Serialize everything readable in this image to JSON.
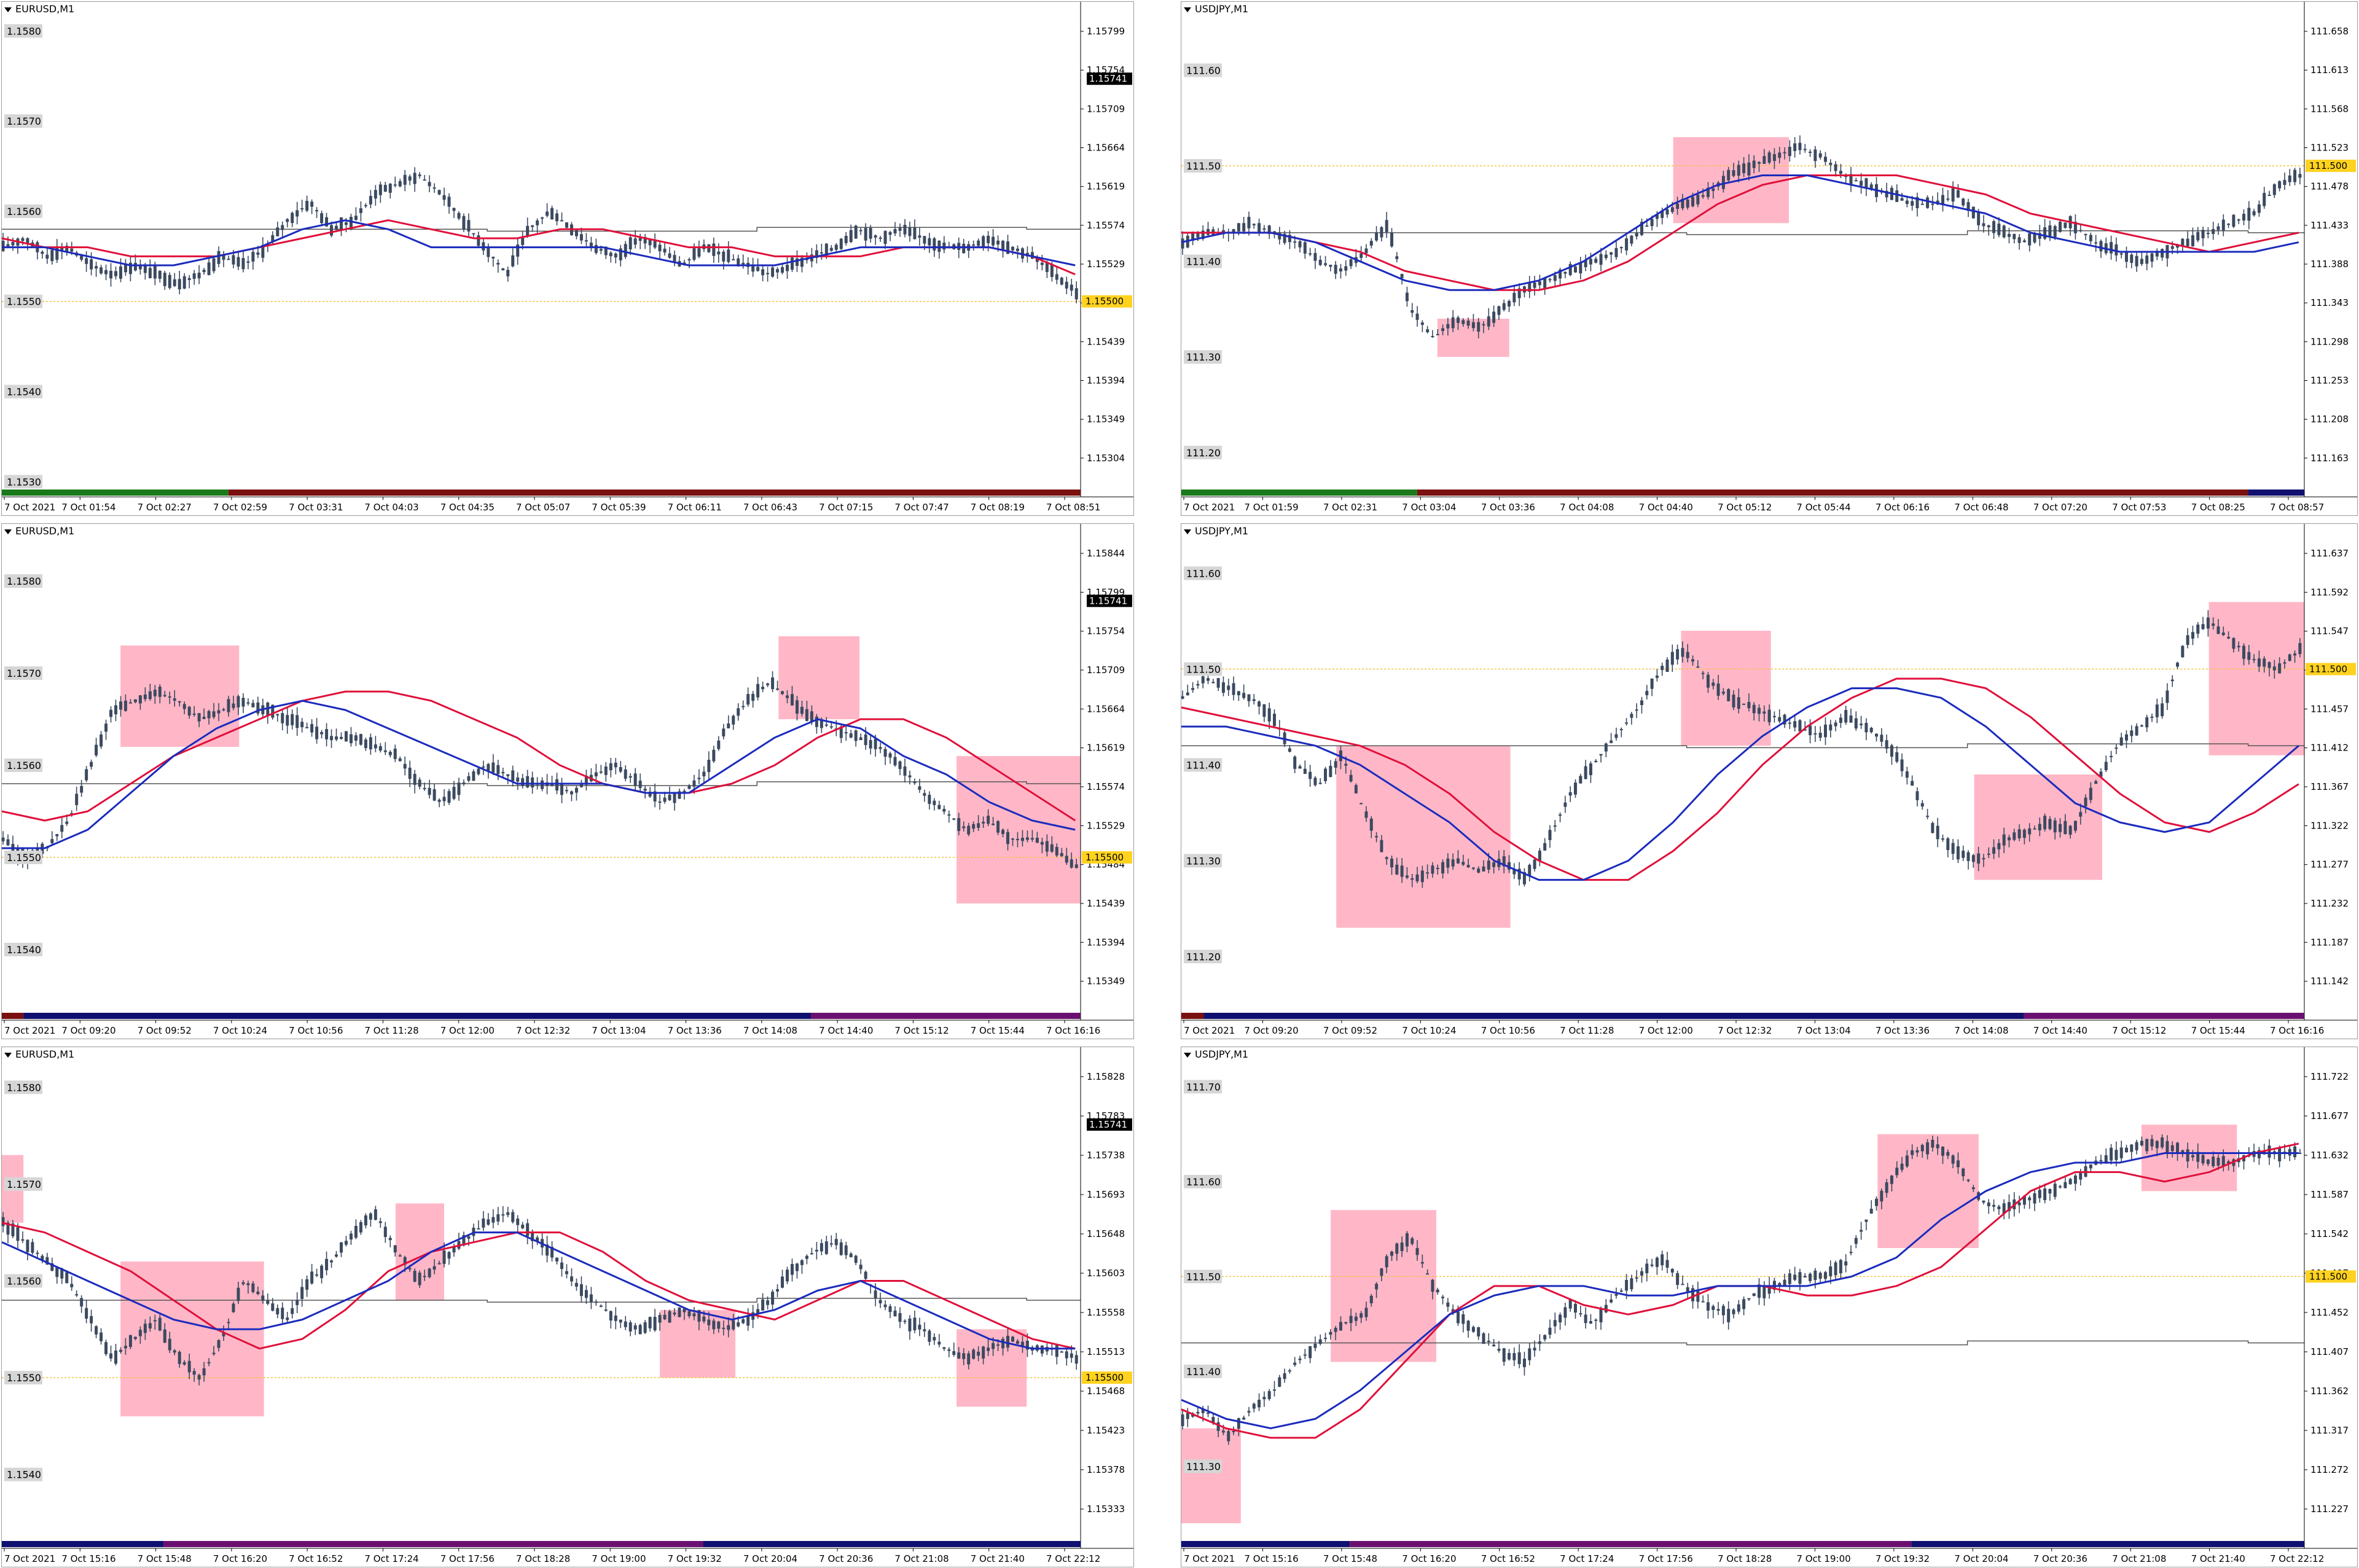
{
  "colors": {
    "candle": "#3c4a60",
    "ma_red": "#e0103a",
    "ma_blue": "#1b2bbd",
    "line_gray": "#555555",
    "dotted": "#f3c23c",
    "highlight": "#ff9fb4",
    "badge": "#ffd21f",
    "grid_label_bg": "#d6d6d6"
  },
  "charts": [
    {
      "id": "c1",
      "title": "EURUSD,M1",
      "left_labels": [
        "1.1580",
        "1.1570",
        "1.1560",
        "1.1550",
        "1.1540",
        "1.1530"
      ],
      "right_labels": [
        "1.15799",
        "1.15754",
        "1.15709",
        "1.15664",
        "1.15619",
        "1.15574",
        "1.15529",
        "1.15484",
        "1.15439",
        "1.15394",
        "1.15349",
        "1.15304"
      ],
      "price_badge": "1.15500",
      "black_badge": "1.15741",
      "x_labels": [
        "7 Oct 2021",
        "7 Oct 01:54",
        "7 Oct 02:27",
        "7 Oct 02:59",
        "7 Oct 03:31",
        "7 Oct 04:03",
        "7 Oct 04:35",
        "7 Oct 05:07",
        "7 Oct 05:39",
        "7 Oct 06:11",
        "7 Oct 06:43",
        "7 Oct 07:15",
        "7 Oct 07:47",
        "7 Oct 08:19",
        "7 Oct 08:51"
      ],
      "session_bar": [
        [
          "#1a7a1a",
          0.21
        ],
        [
          "#7a1010",
          0.79
        ]
      ],
      "price_path": [
        1.1556,
        1.1557,
        1.1555,
        1.1556,
        1.1554,
        1.1553,
        1.1554,
        1.1553,
        1.1552,
        1.1553,
        1.1555,
        1.1554,
        1.1556,
        1.1559,
        1.1561,
        1.1558,
        1.1559,
        1.1562,
        1.1563,
        1.1564,
        1.1562,
        1.1559,
        1.1556,
        1.1553,
        1.1558,
        1.156,
        1.1558,
        1.1556,
        1.1555,
        1.1557,
        1.1556,
        1.1554,
        1.1556,
        1.1555,
        1.1554,
        1.1553,
        1.1554,
        1.1555,
        1.1556,
        1.1558,
        1.1557,
        1.1558,
        1.1557,
        1.1556,
        1.1556,
        1.1557,
        1.1556,
        1.1555,
        1.1553,
        1.1551
      ],
      "ma_red": [
        1.1557,
        1.1556,
        1.1556,
        1.1555,
        1.1555,
        1.1555,
        1.1556,
        1.1557,
        1.1558,
        1.1559,
        1.1558,
        1.1557,
        1.1557,
        1.1558,
        1.1558,
        1.1557,
        1.1556,
        1.1556,
        1.1555,
        1.1555,
        1.1555,
        1.1556,
        1.1556,
        1.1556,
        1.1555,
        1.1553
      ],
      "ma_blue": [
        1.1556,
        1.1556,
        1.1555,
        1.1554,
        1.1554,
        1.1555,
        1.1556,
        1.1558,
        1.1559,
        1.1558,
        1.1556,
        1.1556,
        1.1556,
        1.1556,
        1.1556,
        1.1555,
        1.1554,
        1.1554,
        1.1554,
        1.1555,
        1.1556,
        1.1556,
        1.1556,
        1.1556,
        1.1555,
        1.1554
      ],
      "gray_line": 1.1558,
      "yrange": [
        1.1529,
        1.1582
      ],
      "dotted_price": 1.155,
      "boxes": []
    },
    {
      "id": "c2",
      "title": "USDJPY,M1",
      "left_labels": [
        "111.60",
        "111.50",
        "111.40",
        "111.30",
        "111.20"
      ],
      "right_labels": [
        "111.658",
        "111.613",
        "111.568",
        "111.523",
        "111.478",
        "111.433",
        "111.388",
        "111.343",
        "111.298",
        "111.253",
        "111.208",
        "111.163"
      ],
      "price_badge": "111.500",
      "black_badge": "",
      "x_labels": [
        "7 Oct 2021",
        "7 Oct 01:59",
        "7 Oct 02:31",
        "7 Oct 03:04",
        "7 Oct 03:36",
        "7 Oct 04:08",
        "7 Oct 04:40",
        "7 Oct 05:12",
        "7 Oct 05:44",
        "7 Oct 06:16",
        "7 Oct 06:48",
        "7 Oct 07:20",
        "7 Oct 07:53",
        "7 Oct 08:25",
        "7 Oct 08:57"
      ],
      "session_bar": [
        [
          "#1a7a1a",
          0.21
        ],
        [
          "#7a1010",
          0.74
        ],
        [
          "#101070",
          0.05
        ]
      ],
      "price_path": [
        111.42,
        111.43,
        111.43,
        111.44,
        111.43,
        111.42,
        111.4,
        111.39,
        111.41,
        111.44,
        111.35,
        111.32,
        111.34,
        111.33,
        111.35,
        111.37,
        111.38,
        111.39,
        111.4,
        111.41,
        111.43,
        111.45,
        111.46,
        111.47,
        111.49,
        111.5,
        111.51,
        111.52,
        111.51,
        111.49,
        111.48,
        111.47,
        111.46,
        111.46,
        111.47,
        111.44,
        111.43,
        111.42,
        111.43,
        111.44,
        111.42,
        111.41,
        111.4,
        111.41,
        111.42,
        111.43,
        111.44,
        111.45,
        111.48,
        111.49
      ],
      "ma_red": [
        111.43,
        111.43,
        111.43,
        111.42,
        111.41,
        111.39,
        111.38,
        111.37,
        111.37,
        111.38,
        111.4,
        111.43,
        111.46,
        111.48,
        111.49,
        111.49,
        111.49,
        111.48,
        111.47,
        111.45,
        111.44,
        111.43,
        111.42,
        111.41,
        111.42,
        111.43
      ],
      "ma_blue": [
        111.42,
        111.43,
        111.43,
        111.42,
        111.4,
        111.38,
        111.37,
        111.37,
        111.38,
        111.4,
        111.43,
        111.46,
        111.48,
        111.49,
        111.49,
        111.48,
        111.47,
        111.46,
        111.45,
        111.43,
        111.42,
        111.41,
        111.41,
        111.41,
        111.41,
        111.42
      ],
      "gray_line": 111.43,
      "yrange": [
        111.16,
        111.66
      ],
      "dotted_price": 111.5,
      "boxes": [
        [
          0.228,
          111.34,
          0.292,
          111.3
        ],
        [
          0.438,
          111.53,
          0.541,
          111.44
        ]
      ]
    },
    {
      "id": "c3",
      "title": "EURUSD,M1",
      "left_labels": [
        "1.1580",
        "1.1570",
        "1.1560",
        "1.1550",
        "1.1540"
      ],
      "right_labels": [
        "1.15844",
        "1.15799",
        "1.15754",
        "1.15709",
        "1.15664",
        "1.15619",
        "1.15574",
        "1.15529",
        "1.15484",
        "1.15439",
        "1.15394",
        "1.15349"
      ],
      "price_badge": "1.15500",
      "black_badge": "1.15741",
      "x_labels": [
        "7 Oct 2021",
        "7 Oct 09:20",
        "7 Oct 09:52",
        "7 Oct 10:24",
        "7 Oct 10:56",
        "7 Oct 11:28",
        "7 Oct 12:00",
        "7 Oct 12:32",
        "7 Oct 13:04",
        "7 Oct 13:36",
        "7 Oct 14:08",
        "7 Oct 14:40",
        "7 Oct 15:12",
        "7 Oct 15:44",
        "7 Oct 16:16"
      ],
      "session_bar": [
        [
          "#7a1010",
          0.02
        ],
        [
          "#101070",
          0.73
        ],
        [
          "#6a1070",
          0.25
        ]
      ],
      "price_path": [
        1.1552,
        1.155,
        1.1551,
        1.1554,
        1.156,
        1.1566,
        1.1567,
        1.1568,
        1.1567,
        1.1565,
        1.1566,
        1.1567,
        1.1566,
        1.1565,
        1.1564,
        1.1563,
        1.1563,
        1.1562,
        1.1561,
        1.1558,
        1.1556,
        1.1558,
        1.156,
        1.1559,
        1.1558,
        1.1558,
        1.1557,
        1.1559,
        1.156,
        1.1558,
        1.1556,
        1.1557,
        1.1559,
        1.1564,
        1.1567,
        1.1569,
        1.1567,
        1.1565,
        1.1564,
        1.1563,
        1.1562,
        1.156,
        1.1557,
        1.1555,
        1.1553,
        1.1554,
        1.1552,
        1.1552,
        1.1551,
        1.1549
      ],
      "ma_red": [
        1.1555,
        1.1554,
        1.1555,
        1.1558,
        1.1561,
        1.1563,
        1.1565,
        1.1567,
        1.1568,
        1.1568,
        1.1567,
        1.1565,
        1.1563,
        1.156,
        1.1558,
        1.1557,
        1.1557,
        1.1558,
        1.156,
        1.1563,
        1.1565,
        1.1565,
        1.1563,
        1.156,
        1.1557,
        1.1554
      ],
      "ma_blue": [
        1.1551,
        1.1551,
        1.1553,
        1.1557,
        1.1561,
        1.1564,
        1.1566,
        1.1567,
        1.1566,
        1.1564,
        1.1562,
        1.156,
        1.1558,
        1.1558,
        1.1558,
        1.1557,
        1.1557,
        1.156,
        1.1563,
        1.1565,
        1.1564,
        1.1561,
        1.1559,
        1.1556,
        1.1554,
        1.1553
      ],
      "gray_line": 1.1558,
      "yrange": [
        1.1533,
        1.1585
      ],
      "dotted_price": 1.155,
      "boxes": [
        [
          0.11,
          1.1573,
          0.22,
          1.1562
        ],
        [
          0.72,
          1.1574,
          0.795,
          1.1565
        ],
        [
          0.885,
          1.1561,
          1.0,
          1.1545
        ]
      ]
    },
    {
      "id": "c4",
      "title": "USDJPY,M1",
      "left_labels": [
        "111.60",
        "111.50",
        "111.40",
        "111.30",
        "111.20"
      ],
      "right_labels": [
        "111.637",
        "111.592",
        "111.547",
        "111.502",
        "111.457",
        "111.412",
        "111.367",
        "111.322",
        "111.277",
        "111.232",
        "111.187",
        "111.142"
      ],
      "price_badge": "111.500",
      "black_badge": "",
      "x_labels": [
        "7 Oct 2021",
        "7 Oct 09:20",
        "7 Oct 09:52",
        "7 Oct 10:24",
        "7 Oct 10:56",
        "7 Oct 11:28",
        "7 Oct 12:00",
        "7 Oct 12:32",
        "7 Oct 13:04",
        "7 Oct 13:36",
        "7 Oct 14:08",
        "7 Oct 14:40",
        "7 Oct 15:12",
        "7 Oct 15:44",
        "7 Oct 16:16"
      ],
      "session_bar": [
        [
          "#7a1010",
          0.02
        ],
        [
          "#101070",
          0.73
        ],
        [
          "#6a1070",
          0.25
        ]
      ],
      "price_path": [
        111.47,
        111.49,
        111.48,
        111.47,
        111.45,
        111.4,
        111.38,
        111.41,
        111.35,
        111.3,
        111.28,
        111.29,
        111.3,
        111.29,
        111.3,
        111.28,
        111.32,
        111.37,
        111.4,
        111.43,
        111.46,
        111.5,
        111.52,
        111.49,
        111.47,
        111.46,
        111.45,
        111.44,
        111.43,
        111.45,
        111.44,
        111.42,
        111.38,
        111.33,
        111.31,
        111.3,
        111.32,
        111.33,
        111.34,
        111.33,
        111.38,
        111.42,
        111.44,
        111.46,
        111.53,
        111.55,
        111.53,
        111.51,
        111.5,
        111.52
      ],
      "ma_red": [
        111.46,
        111.45,
        111.44,
        111.43,
        111.42,
        111.4,
        111.37,
        111.33,
        111.3,
        111.28,
        111.28,
        111.31,
        111.35,
        111.4,
        111.44,
        111.47,
        111.49,
        111.49,
        111.48,
        111.45,
        111.41,
        111.37,
        111.34,
        111.33,
        111.35,
        111.38
      ],
      "ma_blue": [
        111.44,
        111.44,
        111.43,
        111.42,
        111.4,
        111.37,
        111.34,
        111.3,
        111.28,
        111.28,
        111.3,
        111.34,
        111.39,
        111.43,
        111.46,
        111.48,
        111.48,
        111.47,
        111.44,
        111.4,
        111.36,
        111.34,
        111.33,
        111.34,
        111.38,
        111.42
      ],
      "gray_line": 111.42,
      "yrange": [
        111.14,
        111.64
      ],
      "dotted_price": 111.5,
      "boxes": [
        [
          0.138,
          111.42,
          0.293,
          111.23
        ],
        [
          0.445,
          111.54,
          0.525,
          111.42
        ],
        [
          0.706,
          111.39,
          0.82,
          111.28
        ],
        [
          0.915,
          111.57,
          1.0,
          111.41
        ]
      ]
    },
    {
      "id": "c5",
      "title": "EURUSD,M1",
      "left_labels": [
        "1.1580",
        "1.1570",
        "1.1560",
        "1.1550",
        "1.1540"
      ],
      "right_labels": [
        "1.15828",
        "1.15783",
        "1.15738",
        "1.15693",
        "1.15648",
        "1.15603",
        "1.15558",
        "1.15513",
        "1.15468",
        "1.15423",
        "1.15378",
        "1.15333"
      ],
      "price_badge": "1.15500",
      "black_badge": "1.15741",
      "x_labels": [
        "7 Oct 2021",
        "7 Oct 15:16",
        "7 Oct 15:48",
        "7 Oct 16:20",
        "7 Oct 16:52",
        "7 Oct 17:24",
        "7 Oct 17:56",
        "7 Oct 18:28",
        "7 Oct 19:00",
        "7 Oct 19:32",
        "7 Oct 20:04",
        "7 Oct 20:36",
        "7 Oct 21:08",
        "7 Oct 21:40",
        "7 Oct 22:12"
      ],
      "session_bar": [
        [
          "#101070",
          0.15
        ],
        [
          "#6a1070",
          0.5
        ],
        [
          "#101070",
          0.35
        ]
      ],
      "price_path": [
        1.1566,
        1.1564,
        1.1562,
        1.156,
        1.1556,
        1.1552,
        1.1554,
        1.1556,
        1.1552,
        1.155,
        1.1554,
        1.156,
        1.1558,
        1.1556,
        1.156,
        1.1562,
        1.1565,
        1.1567,
        1.1563,
        1.156,
        1.1562,
        1.1564,
        1.1566,
        1.1567,
        1.1565,
        1.1563,
        1.156,
        1.1558,
        1.1556,
        1.1555,
        1.1556,
        1.1557,
        1.1556,
        1.1555,
        1.1556,
        1.1558,
        1.1561,
        1.1563,
        1.1564,
        1.1562,
        1.1558,
        1.1556,
        1.1555,
        1.1553,
        1.1552,
        1.1553,
        1.1554,
        1.1553,
        1.1553,
        1.1552
      ],
      "ma_red": [
        1.1566,
        1.1565,
        1.1563,
        1.1561,
        1.1558,
        1.1555,
        1.1553,
        1.1554,
        1.1557,
        1.1561,
        1.1563,
        1.1564,
        1.1565,
        1.1565,
        1.1563,
        1.156,
        1.1558,
        1.1557,
        1.1556,
        1.1558,
        1.156,
        1.156,
        1.1558,
        1.1556,
        1.1554,
        1.1553
      ],
      "ma_blue": [
        1.1564,
        1.1562,
        1.156,
        1.1558,
        1.1556,
        1.1555,
        1.1555,
        1.1556,
        1.1558,
        1.156,
        1.1563,
        1.1565,
        1.1565,
        1.1563,
        1.1561,
        1.1559,
        1.1557,
        1.1556,
        1.1557,
        1.1559,
        1.156,
        1.1558,
        1.1556,
        1.1554,
        1.1553,
        1.1553
      ],
      "gray_line": 1.1558,
      "yrange": [
        1.1533,
        1.1583
      ],
      "dotted_price": 1.155,
      "boxes": [
        [
          0.0,
          1.1573,
          0.02,
          1.1566
        ],
        [
          0.11,
          1.1562,
          0.243,
          1.1546
        ],
        [
          0.365,
          1.1568,
          0.41,
          1.1558
        ],
        [
          0.61,
          1.1557,
          0.68,
          1.155
        ],
        [
          0.885,
          1.1555,
          0.95,
          1.1547
        ]
      ]
    },
    {
      "id": "c6",
      "title": "USDJPY,M1",
      "left_labels": [
        "111.70",
        "111.60",
        "111.50",
        "111.40",
        "111.30"
      ],
      "right_labels": [
        "111.722",
        "111.677",
        "111.632",
        "111.587",
        "111.542",
        "111.497",
        "111.452",
        "111.407",
        "111.362",
        "111.317",
        "111.272",
        "111.227"
      ],
      "price_badge": "111.500",
      "black_badge": "",
      "x_labels": [
        "7 Oct 2021",
        "7 Oct 15:16",
        "7 Oct 15:48",
        "7 Oct 16:20",
        "7 Oct 16:52",
        "7 Oct 17:24",
        "7 Oct 17:56",
        "7 Oct 18:28",
        "7 Oct 19:00",
        "7 Oct 19:32",
        "7 Oct 20:04",
        "7 Oct 20:36",
        "7 Oct 21:08",
        "7 Oct 21:40",
        "7 Oct 22:12"
      ],
      "session_bar": [
        [
          "#101070",
          0.15
        ],
        [
          "#6a1070",
          0.5
        ],
        [
          "#101070",
          0.35
        ]
      ],
      "price_path": [
        111.35,
        111.36,
        111.33,
        111.36,
        111.38,
        111.41,
        111.43,
        111.45,
        111.46,
        111.52,
        111.54,
        111.49,
        111.46,
        111.44,
        111.42,
        111.41,
        111.44,
        111.47,
        111.45,
        111.48,
        111.5,
        111.52,
        111.49,
        111.47,
        111.46,
        111.48,
        111.49,
        111.5,
        111.5,
        111.51,
        111.56,
        111.6,
        111.63,
        111.64,
        111.62,
        111.58,
        111.57,
        111.58,
        111.59,
        111.6,
        111.62,
        111.63,
        111.64,
        111.64,
        111.63,
        111.62,
        111.62,
        111.63,
        111.63,
        111.63
      ],
      "ma_red": [
        111.36,
        111.34,
        111.33,
        111.33,
        111.36,
        111.41,
        111.46,
        111.49,
        111.49,
        111.47,
        111.46,
        111.47,
        111.49,
        111.49,
        111.48,
        111.48,
        111.49,
        111.51,
        111.55,
        111.59,
        111.61,
        111.61,
        111.6,
        111.61,
        111.63,
        111.64
      ],
      "ma_blue": [
        111.37,
        111.35,
        111.34,
        111.35,
        111.38,
        111.42,
        111.46,
        111.48,
        111.49,
        111.49,
        111.48,
        111.48,
        111.49,
        111.49,
        111.49,
        111.5,
        111.52,
        111.56,
        111.59,
        111.61,
        111.62,
        111.62,
        111.63,
        111.63,
        111.63,
        111.63
      ],
      "gray_line": 111.43,
      "yrange": [
        111.22,
        111.73
      ],
      "dotted_price": 111.5,
      "boxes": [
        [
          0.0,
          111.34,
          0.053,
          111.24
        ],
        [
          0.133,
          111.57,
          0.227,
          111.41
        ],
        [
          0.62,
          111.65,
          0.71,
          111.53
        ],
        [
          0.855,
          111.66,
          0.94,
          111.59
        ]
      ]
    }
  ]
}
